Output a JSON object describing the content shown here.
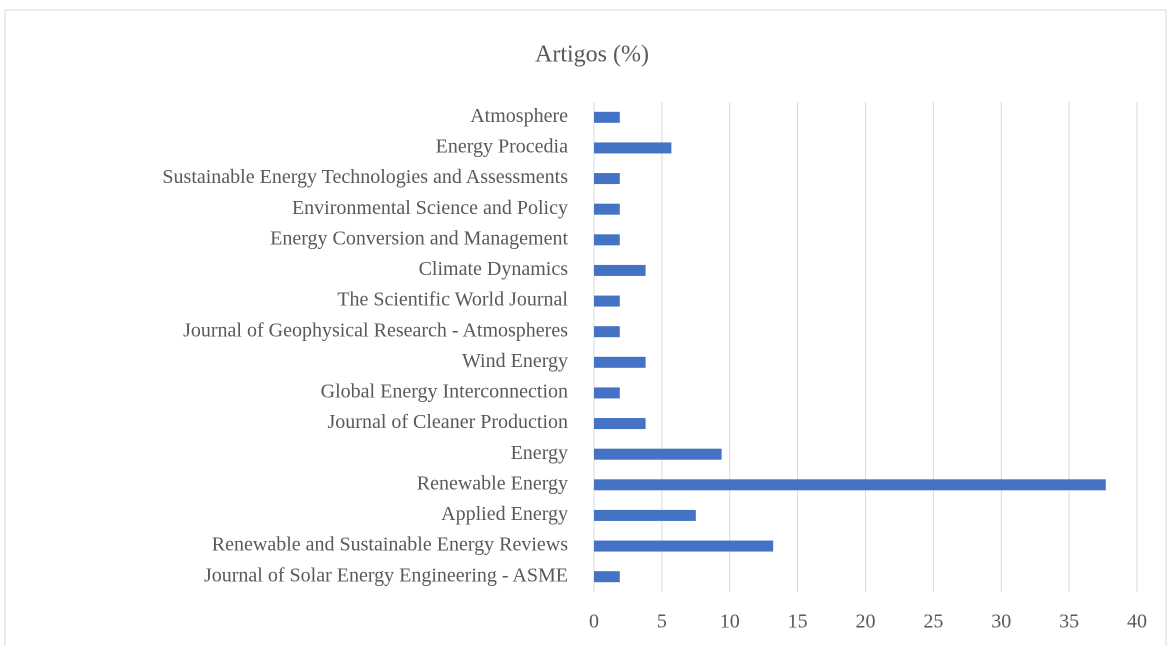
{
  "chart_data": {
    "type": "bar",
    "orientation": "horizontal",
    "title": "Artigos (%)",
    "categories": [
      "Atmosphere",
      "Energy Procedia",
      "Sustainable Energy Technologies and Assessments",
      "Environmental Science and Policy",
      "Energy Conversion and Management",
      "Climate Dynamics",
      "The Scientific World Journal",
      "Journal of Geophysical Research - Atmospheres",
      "Wind Energy",
      "Global Energy Interconnection",
      "Journal of Cleaner Production",
      "Energy",
      "Renewable Energy",
      "Applied Energy",
      "Renewable and Sustainable Energy Reviews",
      "Journal of Solar Energy Engineering - ASME"
    ],
    "values": [
      1.9,
      5.7,
      1.9,
      1.9,
      1.9,
      3.8,
      1.9,
      1.9,
      3.8,
      1.9,
      3.8,
      9.4,
      37.7,
      7.5,
      13.2,
      1.9
    ],
    "color": "#4472c4",
    "xlim": [
      0,
      40
    ],
    "xticks": [
      0,
      5,
      10,
      15,
      20,
      25,
      30,
      35,
      40
    ],
    "grid": true
  }
}
